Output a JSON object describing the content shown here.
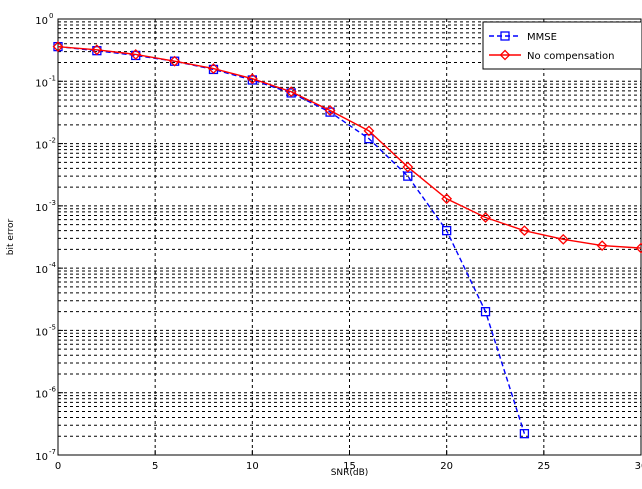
{
  "chart_data": {
    "type": "line",
    "title": "",
    "xlabel": "SNR(dB)",
    "ylabel": "bit error",
    "xlim": [
      0,
      30
    ],
    "ylim": [
      1e-07,
      1
    ],
    "yscale": "log",
    "grid": true,
    "legend_position": "top-right",
    "x_ticks": [
      "0",
      "5",
      "10",
      "15",
      "20",
      "25",
      "30"
    ],
    "y_ticks": [
      {
        "base": "10",
        "exp": "0"
      },
      {
        "base": "10",
        "exp": "-1"
      },
      {
        "base": "10",
        "exp": "-2"
      },
      {
        "base": "10",
        "exp": "-3"
      },
      {
        "base": "10",
        "exp": "-4"
      },
      {
        "base": "10",
        "exp": "-5"
      },
      {
        "base": "10",
        "exp": "-6"
      },
      {
        "base": "10",
        "exp": "-7"
      }
    ],
    "series": [
      {
        "name": "MMSE",
        "color": "#0000ff",
        "line_style": "dashed",
        "marker": "square",
        "x": [
          0,
          2,
          4,
          6,
          8,
          10,
          12,
          14,
          16,
          18,
          20,
          22,
          24
        ],
        "y": [
          0.36,
          0.31,
          0.26,
          0.21,
          0.155,
          0.105,
          0.065,
          0.032,
          0.012,
          0.003,
          0.0004,
          2e-05,
          2.2e-07
        ]
      },
      {
        "name": "No compensation",
        "color": "#ff0000",
        "line_style": "solid",
        "marker": "diamond",
        "x": [
          0,
          2,
          4,
          6,
          8,
          10,
          12,
          14,
          16,
          18,
          20,
          22,
          24,
          26,
          28,
          30
        ],
        "y": [
          0.36,
          0.32,
          0.27,
          0.21,
          0.16,
          0.11,
          0.068,
          0.034,
          0.016,
          0.0042,
          0.0013,
          0.00065,
          0.0004,
          0.00029,
          0.00023,
          0.00021
        ]
      }
    ]
  }
}
